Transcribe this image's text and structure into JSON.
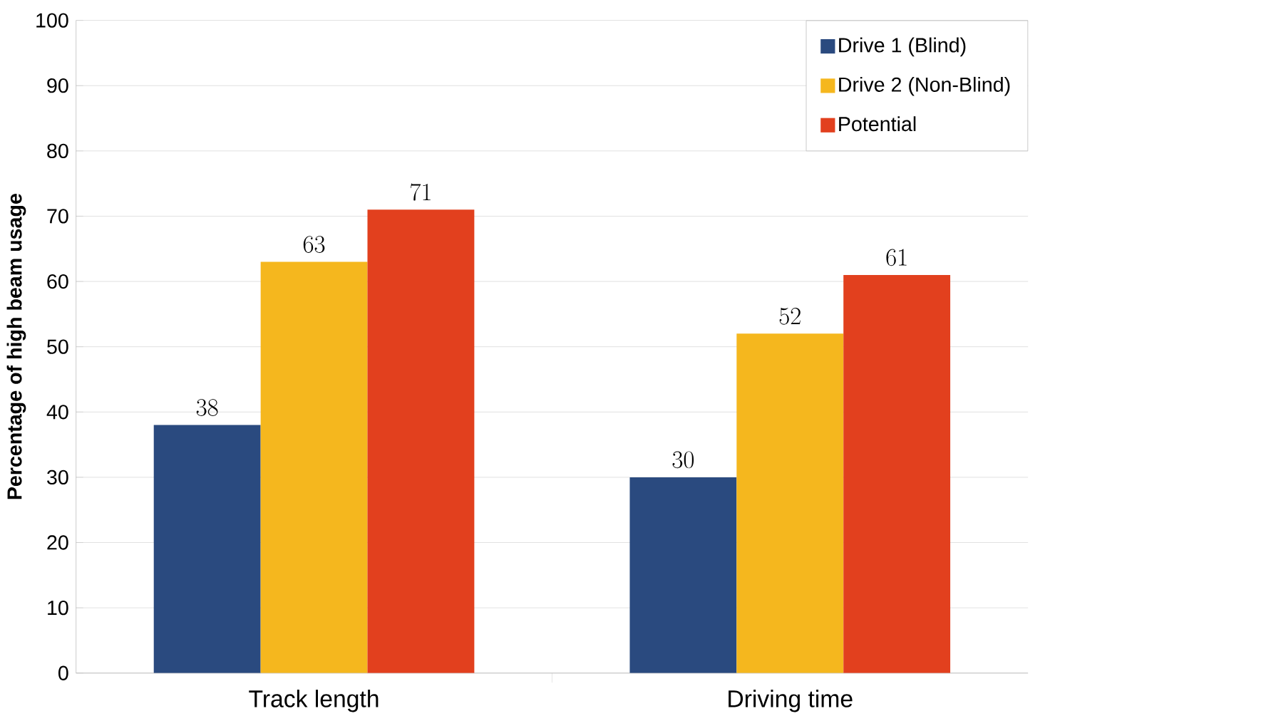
{
  "chart_data": {
    "type": "bar",
    "ylabel": "Percentage of high beam usage",
    "categories": [
      "Track length",
      "Driving time"
    ],
    "series": [
      {
        "name": "Drive 1 (Blind)",
        "color": "#2a4a7f",
        "values": [
          38,
          30
        ]
      },
      {
        "name": "Drive 2 (Non-Blind)",
        "color": "#f5b71e",
        "values": [
          63,
          52
        ]
      },
      {
        "name": "Potential",
        "color": "#e2401e",
        "values": [
          71,
          61
        ]
      }
    ],
    "ylim": [
      0,
      100
    ],
    "yticks": [
      0,
      10,
      20,
      30,
      40,
      50,
      60,
      70,
      80,
      90,
      100
    ],
    "grid": "y",
    "legend": "top right",
    "data_labels": true
  }
}
